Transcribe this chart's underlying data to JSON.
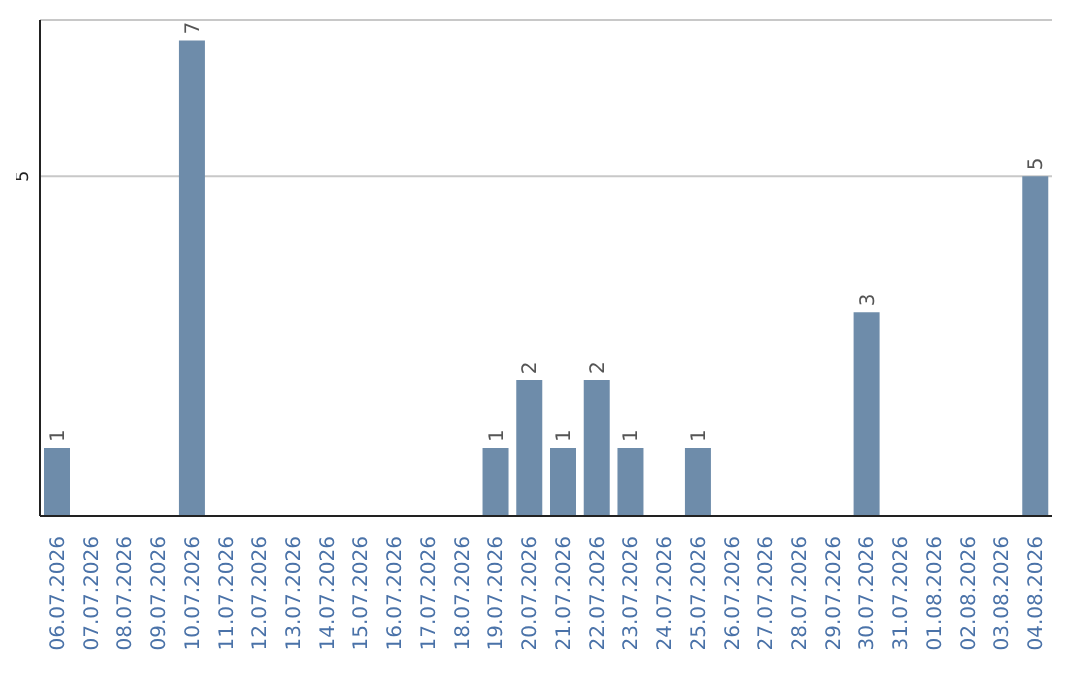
{
  "chart_data": {
    "type": "bar",
    "categories": [
      "06.07.2026",
      "07.07.2026",
      "08.07.2026",
      "09.07.2026",
      "10.07.2026",
      "11.07.2026",
      "12.07.2026",
      "13.07.2026",
      "14.07.2026",
      "15.07.2026",
      "16.07.2026",
      "17.07.2026",
      "18.07.2026",
      "19.07.2026",
      "20.07.2026",
      "21.07.2026",
      "22.07.2026",
      "23.07.2026",
      "24.07.2026",
      "25.07.2026",
      "26.07.2026",
      "27.07.2026",
      "28.07.2026",
      "29.07.2026",
      "30.07.2026",
      "31.07.2026",
      "01.08.2026",
      "02.08.2026",
      "03.08.2026",
      "04.08.2026"
    ],
    "values": [
      1,
      0,
      0,
      0,
      7,
      0,
      0,
      0,
      0,
      0,
      0,
      0,
      0,
      1,
      2,
      1,
      2,
      1,
      0,
      1,
      0,
      0,
      0,
      0,
      3,
      0,
      0,
      0,
      0,
      5
    ],
    "value_labels": [
      "1",
      null,
      null,
      null,
      "7",
      null,
      null,
      null,
      null,
      null,
      null,
      null,
      null,
      "1",
      "2",
      "1",
      "2",
      "1",
      null,
      "1",
      null,
      null,
      null,
      null,
      "3",
      null,
      null,
      null,
      null,
      "5"
    ],
    "color": "#6e8caa",
    "ylim": [
      0,
      7.3
    ],
    "yticks": [
      5
    ],
    "grid": "y"
  }
}
